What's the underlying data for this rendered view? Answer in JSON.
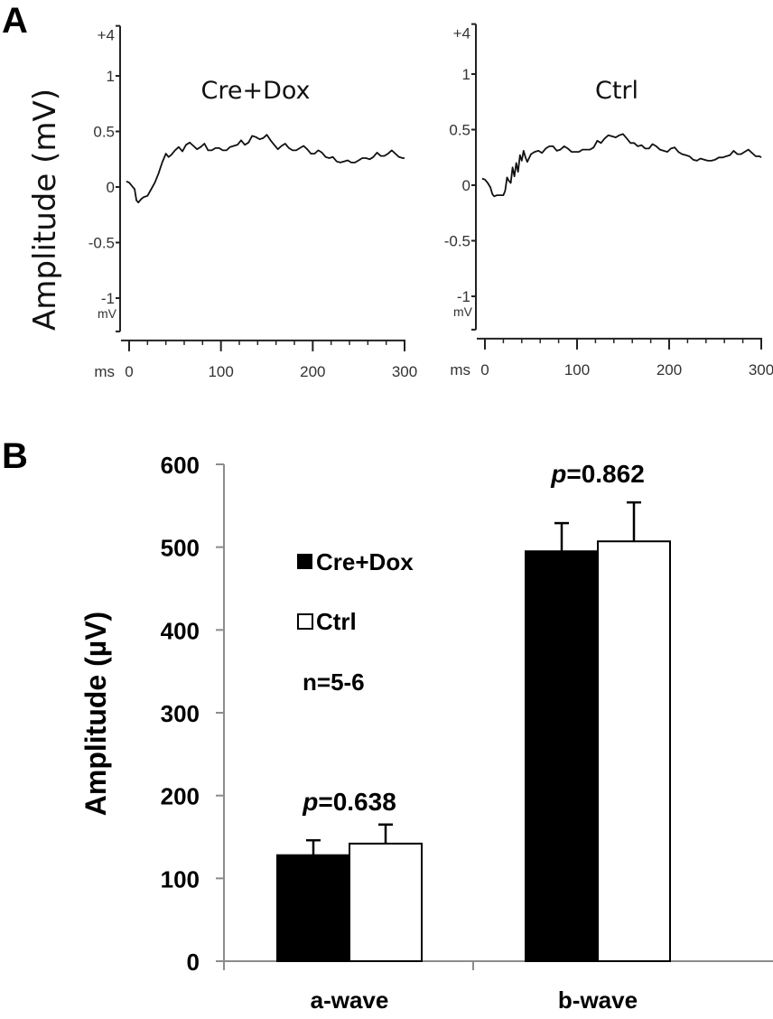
{
  "panels": {
    "A_label": "A",
    "B_label": "B"
  },
  "colors": {
    "cre_dox": "#000000",
    "ctrl": "#ffffff",
    "axis_bar": "#8c8c8c",
    "axis_erg": "#222222"
  },
  "chart_data": [
    {
      "type": "line",
      "panel": "A",
      "title": "Cre+Dox",
      "ylabel": "Amplitude (mV)",
      "xunit": "ms",
      "yunit": "mV",
      "top_marker": "+4",
      "xlim": [
        -5,
        300
      ],
      "ylim": [
        -1.3,
        1.45
      ],
      "xticks": [
        0,
        100,
        200,
        300
      ],
      "yticks": [
        1,
        0.5,
        0,
        -0.5,
        -1
      ],
      "ytick_labels": [
        "1",
        "0.5",
        "0",
        "-0.5",
        "-1"
      ],
      "x": [
        -3,
        0,
        3,
        6,
        8,
        10,
        13,
        16,
        20,
        24,
        28,
        32,
        36,
        40,
        43,
        46,
        50,
        54,
        58,
        62,
        66,
        70,
        74,
        78,
        82,
        86,
        90,
        94,
        98,
        102,
        106,
        110,
        114,
        118,
        122,
        126,
        130,
        134,
        138,
        142,
        146,
        150,
        154,
        158,
        162,
        166,
        170,
        174,
        178,
        182,
        186,
        190,
        194,
        198,
        202,
        206,
        210,
        214,
        218,
        222,
        226,
        230,
        234,
        238,
        242,
        246,
        250,
        254,
        258,
        262,
        266,
        270,
        274,
        278,
        282,
        286,
        290,
        294,
        298,
        300
      ],
      "y": [
        0.05,
        0.04,
        0.01,
        -0.02,
        -0.12,
        -0.14,
        -0.11,
        -0.09,
        -0.08,
        -0.02,
        0.04,
        0.12,
        0.22,
        0.3,
        0.27,
        0.29,
        0.33,
        0.36,
        0.32,
        0.38,
        0.4,
        0.37,
        0.34,
        0.36,
        0.39,
        0.33,
        0.33,
        0.35,
        0.35,
        0.33,
        0.33,
        0.36,
        0.37,
        0.38,
        0.42,
        0.38,
        0.4,
        0.46,
        0.45,
        0.43,
        0.44,
        0.47,
        0.42,
        0.38,
        0.34,
        0.37,
        0.39,
        0.35,
        0.33,
        0.33,
        0.35,
        0.37,
        0.34,
        0.3,
        0.3,
        0.33,
        0.31,
        0.27,
        0.26,
        0.27,
        0.23,
        0.22,
        0.23,
        0.24,
        0.22,
        0.22,
        0.24,
        0.26,
        0.26,
        0.25,
        0.27,
        0.31,
        0.28,
        0.28,
        0.3,
        0.33,
        0.3,
        0.27,
        0.26,
        0.26
      ]
    },
    {
      "type": "line",
      "panel": "A",
      "title": "Ctrl",
      "ylabel": "Amplitude (mV)",
      "xunit": "ms",
      "yunit": "mV",
      "top_marker": "+4",
      "xlim": [
        -5,
        300
      ],
      "ylim": [
        -1.3,
        1.45
      ],
      "xticks": [
        0,
        100,
        200,
        300
      ],
      "yticks": [
        1,
        0.5,
        0,
        -0.5,
        -1
      ],
      "ytick_labels": [
        "1",
        "0.5",
        "0",
        "-0.5",
        "-1"
      ],
      "x": [
        -3,
        0,
        3,
        6,
        8,
        10,
        13,
        16,
        20,
        22,
        24,
        26,
        28,
        30,
        32,
        34,
        36,
        38,
        40,
        42,
        44,
        46,
        50,
        54,
        58,
        62,
        66,
        70,
        74,
        78,
        82,
        86,
        90,
        94,
        98,
        102,
        106,
        110,
        114,
        118,
        122,
        126,
        130,
        134,
        138,
        142,
        146,
        150,
        154,
        158,
        162,
        166,
        170,
        174,
        178,
        182,
        186,
        190,
        194,
        198,
        202,
        206,
        210,
        214,
        218,
        222,
        226,
        230,
        234,
        238,
        242,
        246,
        250,
        254,
        258,
        262,
        266,
        270,
        274,
        278,
        282,
        286,
        290,
        294,
        298,
        300
      ],
      "y": [
        0.06,
        0.05,
        0.02,
        -0.02,
        -0.08,
        -0.1,
        -0.09,
        -0.09,
        -0.09,
        -0.05,
        0.07,
        0.04,
        0.02,
        0.16,
        0.08,
        0.2,
        0.12,
        0.27,
        0.22,
        0.31,
        0.25,
        0.21,
        0.28,
        0.3,
        0.31,
        0.29,
        0.33,
        0.35,
        0.35,
        0.31,
        0.32,
        0.35,
        0.33,
        0.3,
        0.3,
        0.3,
        0.32,
        0.32,
        0.32,
        0.34,
        0.4,
        0.38,
        0.42,
        0.45,
        0.44,
        0.43,
        0.45,
        0.46,
        0.42,
        0.38,
        0.38,
        0.35,
        0.36,
        0.33,
        0.33,
        0.37,
        0.35,
        0.32,
        0.31,
        0.3,
        0.33,
        0.34,
        0.3,
        0.28,
        0.27,
        0.26,
        0.23,
        0.22,
        0.24,
        0.23,
        0.22,
        0.22,
        0.23,
        0.25,
        0.25,
        0.26,
        0.27,
        0.31,
        0.28,
        0.28,
        0.3,
        0.32,
        0.29,
        0.26,
        0.26,
        0.25
      ]
    },
    {
      "type": "bar",
      "panel": "B",
      "title": "",
      "xlabel": "",
      "ylabel": "Amplitude (µV)",
      "ylim": [
        0,
        600
      ],
      "yticks": [
        0,
        100,
        200,
        300,
        400,
        500,
        600
      ],
      "categories": [
        "a-wave",
        "b-wave"
      ],
      "series": [
        {
          "name": "Cre+Dox",
          "values": [
            128,
            495
          ],
          "error": [
            18,
            34
          ]
        },
        {
          "name": "Ctrl",
          "values": [
            142,
            507
          ],
          "error": [
            23,
            47
          ]
        }
      ],
      "annotations": [
        {
          "category": "a-wave",
          "prefix": "p",
          "text": "=0.638"
        },
        {
          "category": "b-wave",
          "prefix": "p",
          "text": "=0.862"
        }
      ],
      "note": "n=5-6",
      "legend_position": "top-left"
    }
  ]
}
